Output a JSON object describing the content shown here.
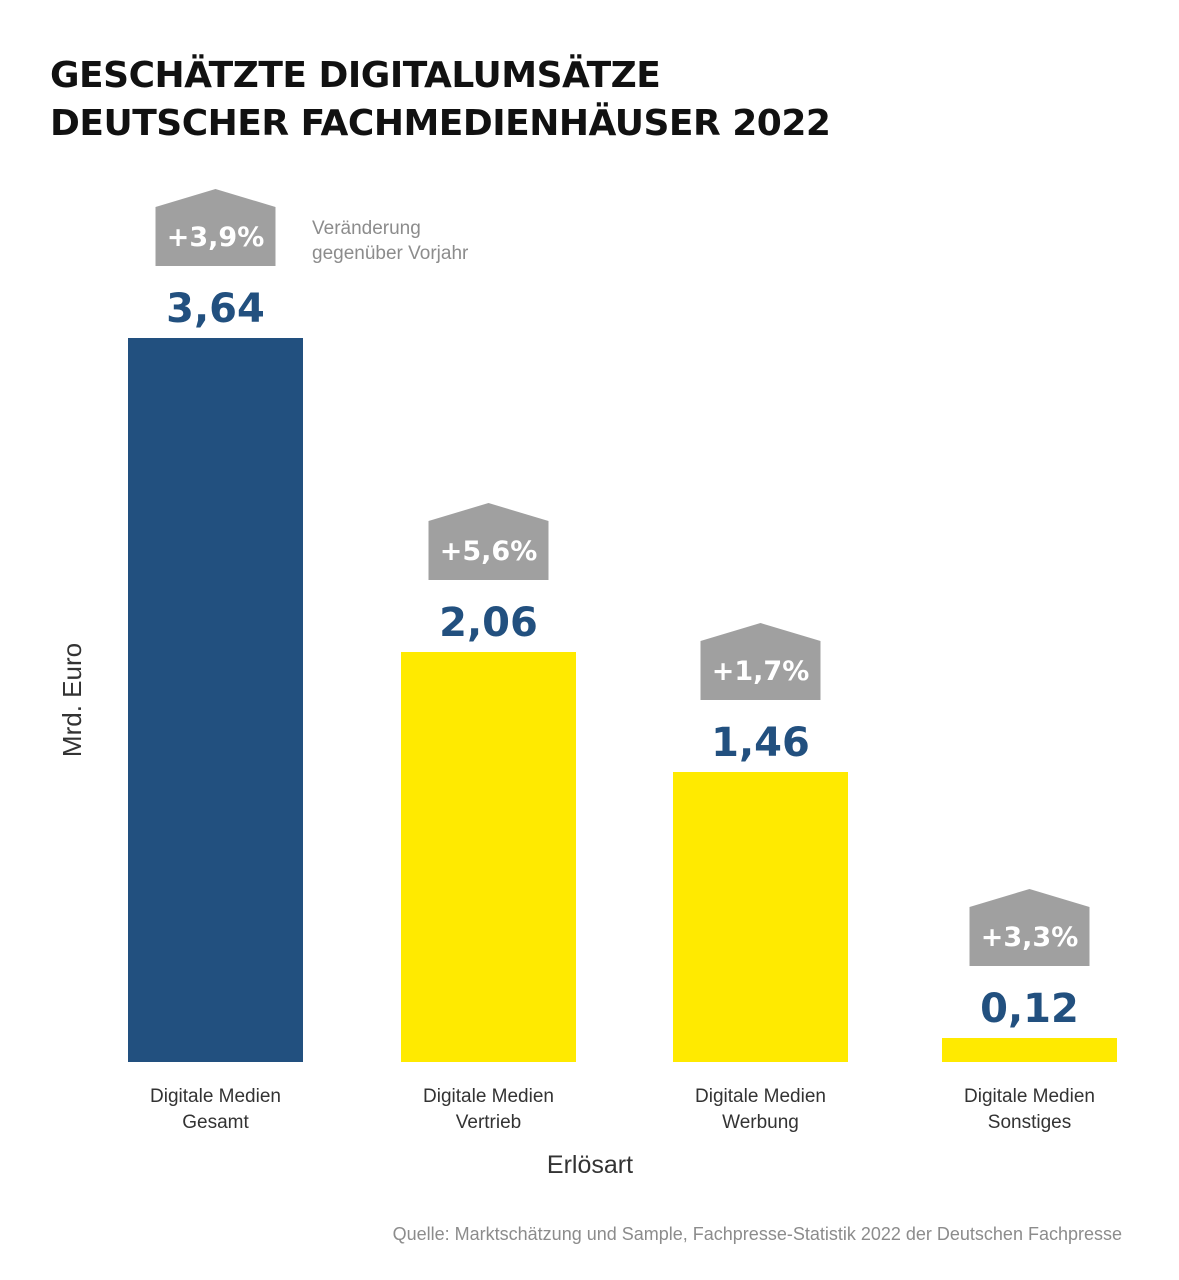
{
  "title": {
    "line1": "GESCHÄTZTE DIGITALUMSÄTZE",
    "line2": "DEUTSCHER FACHMEDIENHÄUSER 2022"
  },
  "note": {
    "line1": "Veränderung",
    "line2": "gegenüber Vorjahr"
  },
  "source": "Quelle: Marktschätzung und Sample, Fachpresse-Statistik 2022 der Deutschen Fachpresse",
  "colors": {
    "primary": "#22507f",
    "highlight": "#ffea00",
    "badge": "#a0a0a0",
    "value_text": "#22507f",
    "axis_text": "#333333"
  },
  "chart_data": {
    "type": "bar",
    "title": "Geschätzte Digitalumsätze deutscher Fachmedienhäuser 2022",
    "xlabel": "Erlösart",
    "ylabel": "Mrd. Euro",
    "ylim": [
      0,
      3.64
    ],
    "grid": false,
    "categories": [
      [
        "Digitale Medien",
        "Gesamt"
      ],
      [
        "Digitale Medien",
        "Vertrieb"
      ],
      [
        "Digitale Medien",
        "Werbung"
      ],
      [
        "Digitale Medien",
        "Sonstiges"
      ]
    ],
    "values": [
      3.64,
      2.06,
      1.46,
      0.12
    ],
    "value_labels": [
      "3,64",
      "2,06",
      "1,46",
      "0,12"
    ],
    "changes": [
      "+3,9%",
      "+5,6%",
      "+1,7%",
      "+3,3%"
    ],
    "bar_colors": [
      "#22507f",
      "#ffea00",
      "#ffea00",
      "#ffea00"
    ]
  }
}
